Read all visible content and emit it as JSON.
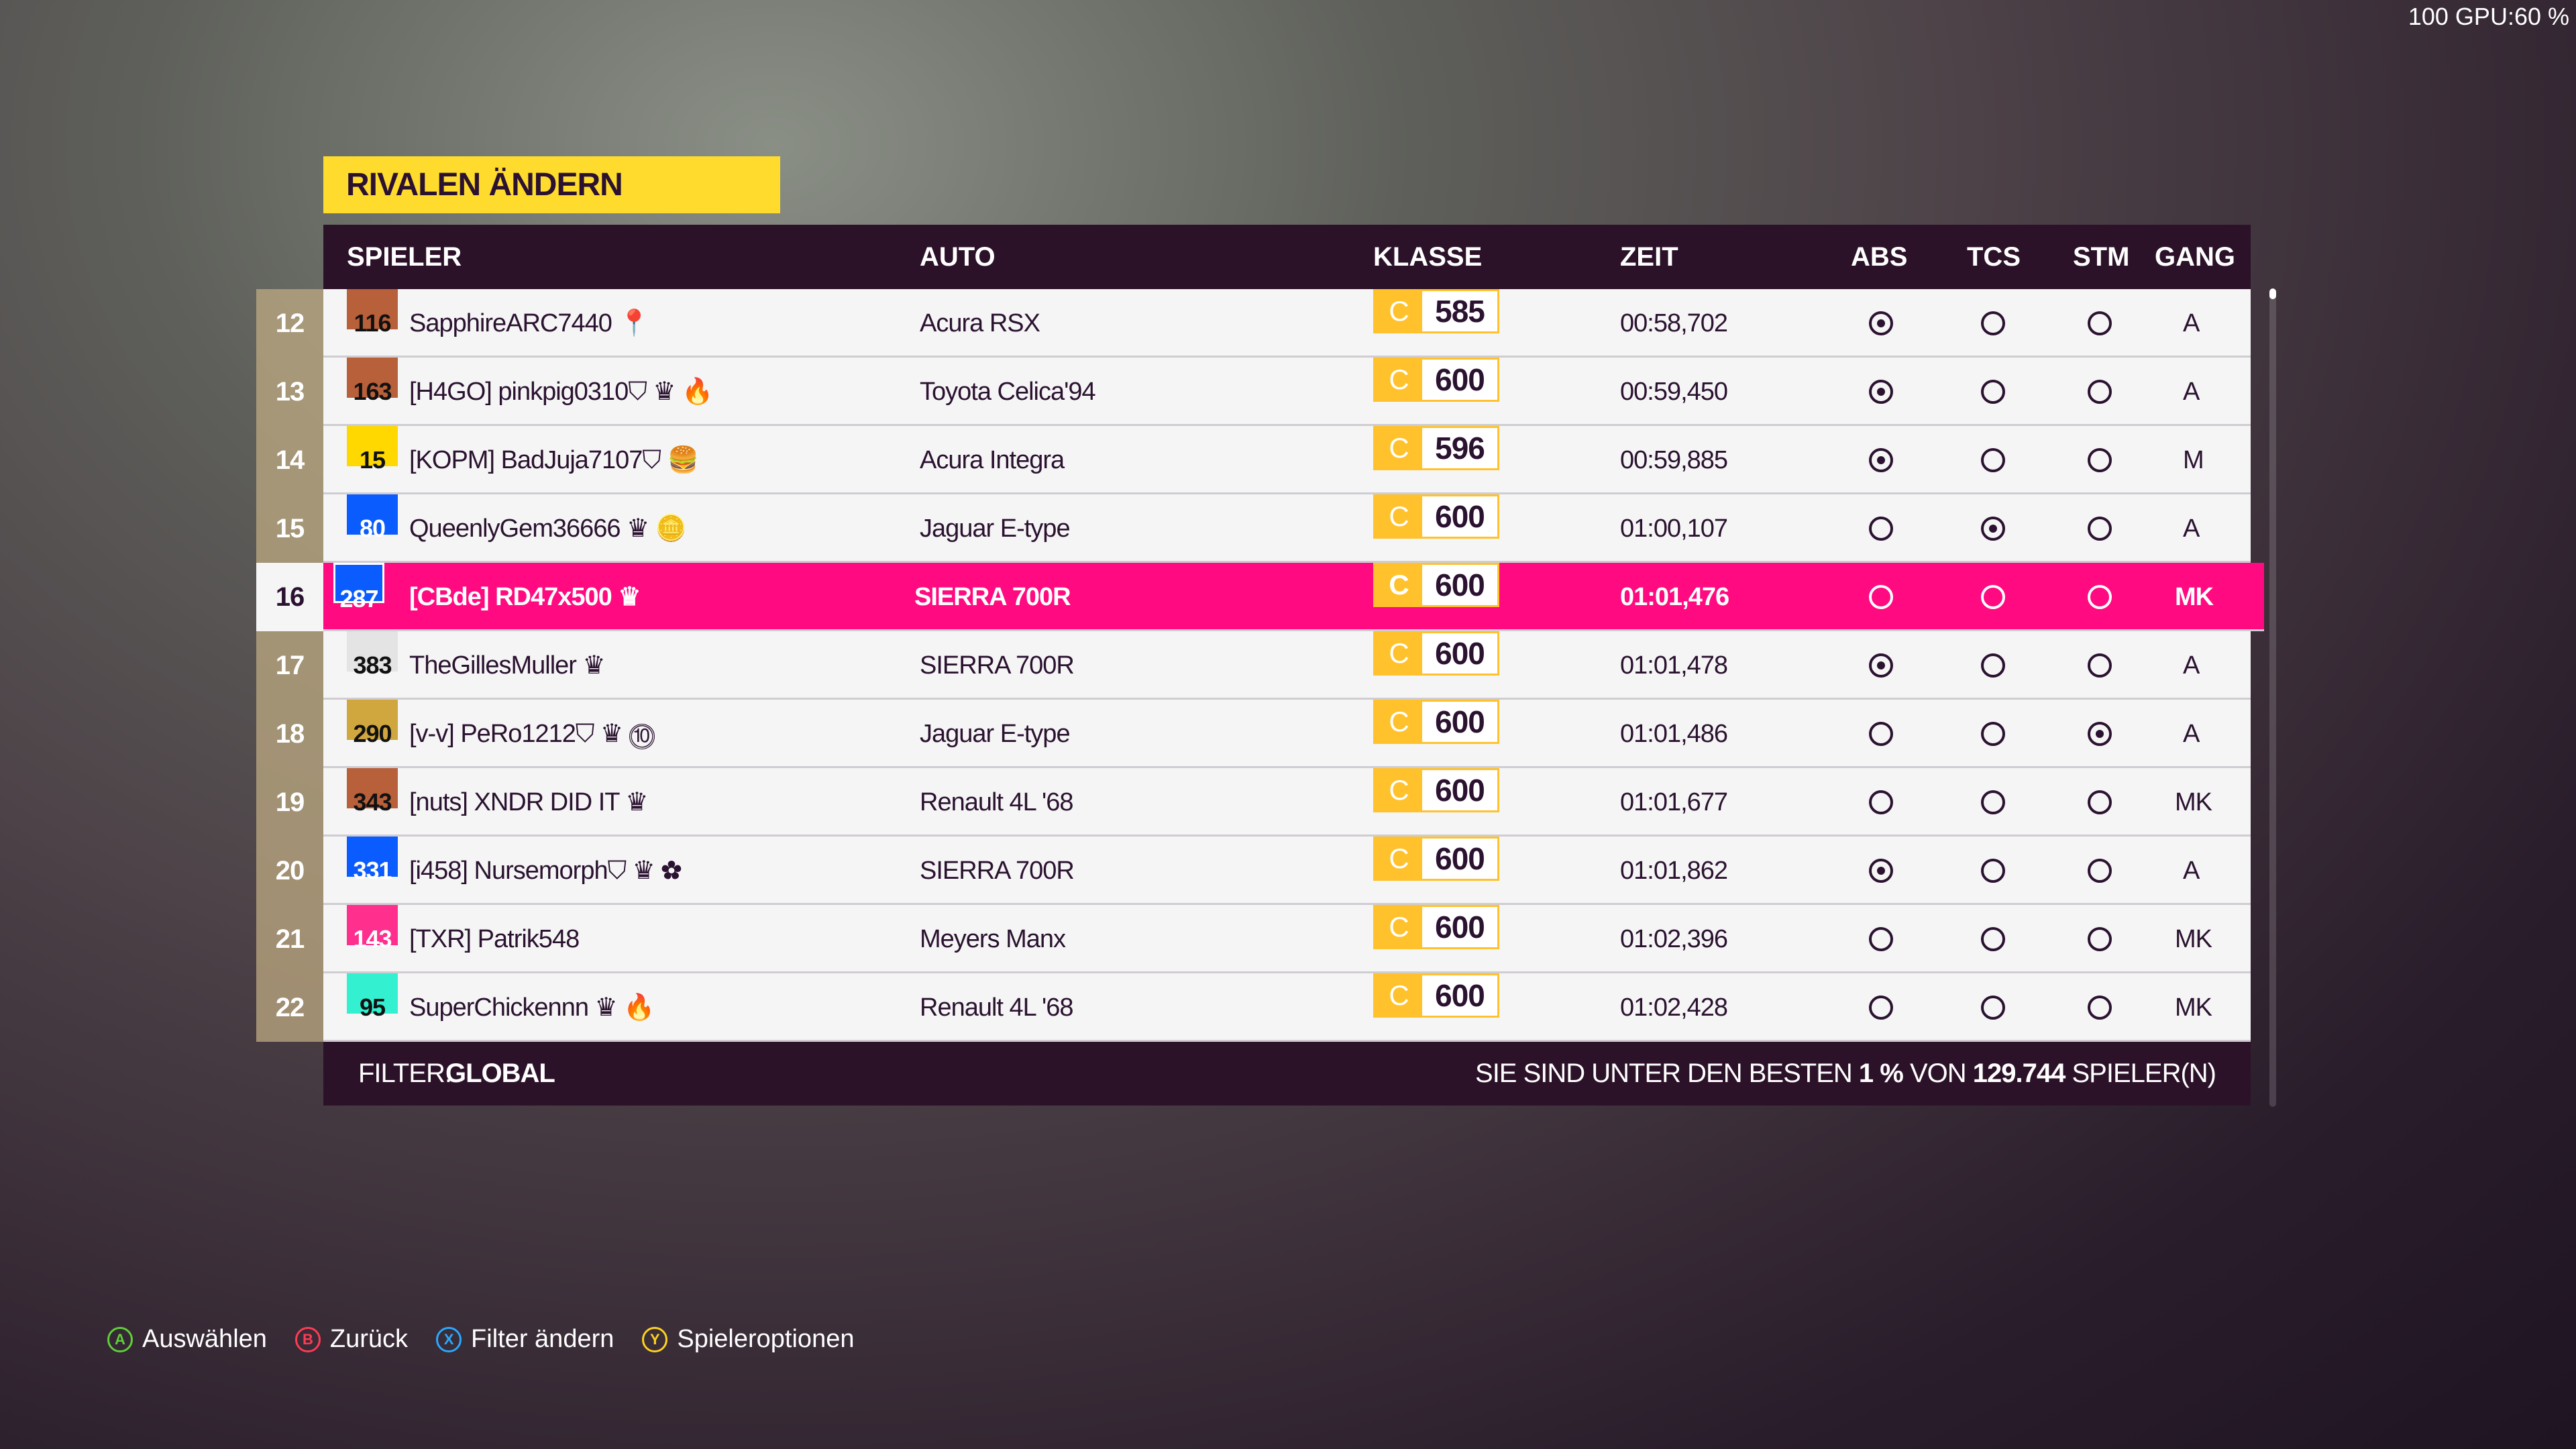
{
  "overlay": "100 GPU:60 %",
  "title": "RIVALEN ÄNDERN",
  "columns": {
    "spieler": "SPIELER",
    "auto": "AUTO",
    "klasse": "KLASSE",
    "zeit": "ZEIT",
    "abs": "ABS",
    "tcs": "TCS",
    "stm": "STM",
    "gang": "GANG"
  },
  "rows": [
    {
      "rank": "12",
      "level": "116",
      "level_color": "#b8603a",
      "name": "SapphireARC7440",
      "icon": "pin-badge-icon",
      "car": "Acura RSX",
      "class": "C",
      "pi": "585",
      "time": "00:58,702",
      "abs": true,
      "tcs": false,
      "stm": false,
      "gear": "A"
    },
    {
      "rank": "13",
      "level": "163",
      "level_color": "#b8603a",
      "name": "[H4GO] pinkpig0310⛉ ♛",
      "icon": "flame-icon",
      "car": "Toyota Celica'94",
      "class": "C",
      "pi": "600",
      "time": "00:59,450",
      "abs": true,
      "tcs": false,
      "stm": false,
      "gear": "A"
    },
    {
      "rank": "14",
      "level": "15",
      "level_color": "#ffd800",
      "name": "[KOPM] BadJuja7107⛉",
      "icon": "burger-icon",
      "car": "Acura Integra",
      "class": "C",
      "pi": "596",
      "time": "00:59,885",
      "abs": true,
      "tcs": false,
      "stm": false,
      "gear": "M"
    },
    {
      "rank": "15",
      "level": "80",
      "level_color": "#0a5cff",
      "name": "QueenlyGem36666 ♛",
      "icon": "coin-badge-icon",
      "car": "Jaguar E-type",
      "class": "C",
      "pi": "600",
      "time": "01:00,107",
      "abs": false,
      "tcs": true,
      "stm": false,
      "gear": "A"
    },
    {
      "rank": "16",
      "level": "287",
      "level_color": "#0a5cff",
      "name": "[CBde] RD47x500 ♛",
      "icon": "",
      "car": "SIERRA 700R",
      "class": "C",
      "pi": "600",
      "time": "01:01,476",
      "abs": false,
      "tcs": false,
      "stm": false,
      "gear": "MK",
      "me": true
    },
    {
      "rank": "17",
      "level": "383",
      "level_color": "#e4e4e4",
      "name": "TheGillesMuller ♛",
      "icon": "",
      "car": "SIERRA 700R",
      "class": "C",
      "pi": "600",
      "time": "01:01,478",
      "abs": true,
      "tcs": false,
      "stm": false,
      "gear": "A"
    },
    {
      "rank": "18",
      "level": "290",
      "level_color": "#cfa73e",
      "name": "[v-v] PeRo1212⛉ ♛",
      "icon": "rainbow-10-badge-icon",
      "car": "Jaguar E-type",
      "class": "C",
      "pi": "600",
      "time": "01:01,486",
      "abs": false,
      "tcs": false,
      "stm": true,
      "gear": "A"
    },
    {
      "rank": "19",
      "level": "343",
      "level_color": "#b8603a",
      "name": "[nuts] XNDR DID IT ♛",
      "icon": "",
      "car": "Renault 4L '68",
      "class": "C",
      "pi": "600",
      "time": "01:01,677",
      "abs": false,
      "tcs": false,
      "stm": false,
      "gear": "MK"
    },
    {
      "rank": "20",
      "level": "331",
      "level_color": "#0a5cff",
      "name": "[i458] Nursemorph⛉ ♛",
      "icon": "flower-icon",
      "car": "SIERRA 700R",
      "class": "C",
      "pi": "600",
      "time": "01:01,862",
      "abs": true,
      "tcs": false,
      "stm": false,
      "gear": "A"
    },
    {
      "rank": "21",
      "level": "143",
      "level_color": "#ff2f8e",
      "name": "[TXR] Patrik548",
      "icon": "",
      "car": "Meyers Manx",
      "class": "C",
      "pi": "600",
      "time": "01:02,396",
      "abs": false,
      "tcs": false,
      "stm": false,
      "gear": "MK"
    },
    {
      "rank": "22",
      "level": "95",
      "level_color": "#33f0d0",
      "name": "SuperChickennn ♛",
      "icon": "flame-icon",
      "car": "Renault 4L '68",
      "class": "C",
      "pi": "600",
      "time": "01:02,428",
      "abs": false,
      "tcs": false,
      "stm": false,
      "gear": "MK"
    }
  ],
  "footer": {
    "filter_label": "FILTER:",
    "filter_value": "GLOBAL",
    "stat_prefix": "SIE SIND UNTER DEN BESTEN",
    "stat_pct": "1 %",
    "stat_mid": "VON",
    "stat_count": "129.744",
    "stat_suffix": "SPIELER(N)"
  },
  "hints": [
    {
      "key": "A",
      "label": "Auswählen",
      "color": "#5fcf3a"
    },
    {
      "key": "B",
      "label": "Zurück",
      "color": "#ff3b55"
    },
    {
      "key": "X",
      "label": "Filter ändern",
      "color": "#2aa8ff"
    },
    {
      "key": "Y",
      "label": "Spieleroptionen",
      "color": "#ffd21f"
    }
  ]
}
